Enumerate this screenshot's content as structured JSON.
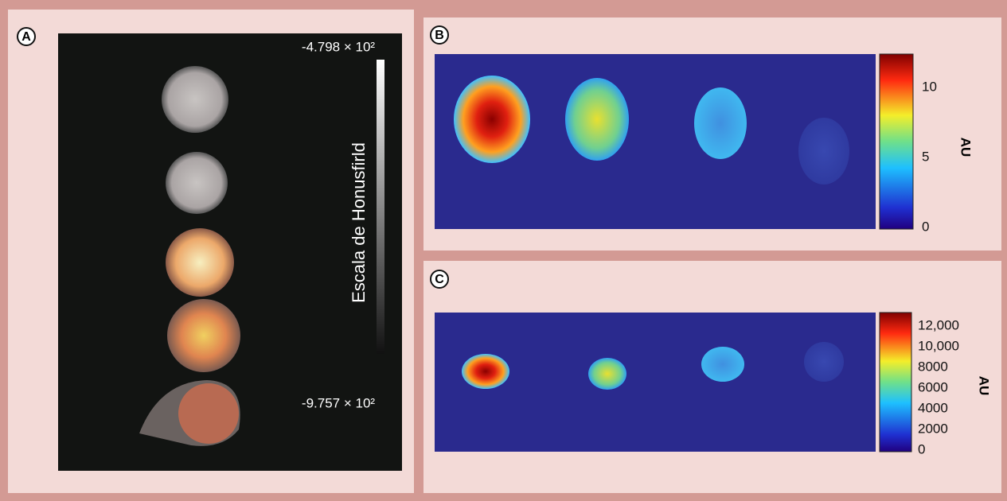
{
  "panels": [
    {
      "label": "A",
      "colorbar": {
        "title": "Escala de Honusfirld",
        "max_label": "-4.798 × 10²",
        "min_label": "-9.757 × 10²"
      }
    },
    {
      "label": "B",
      "colorbar": {
        "title": "AU",
        "ticks": [
          "0",
          "5",
          "10"
        ]
      }
    },
    {
      "label": "C",
      "colorbar": {
        "title": "AU",
        "ticks": [
          "0",
          "2000",
          "4000",
          "6000",
          "8000",
          "10,000",
          "12,000"
        ]
      }
    }
  ]
}
